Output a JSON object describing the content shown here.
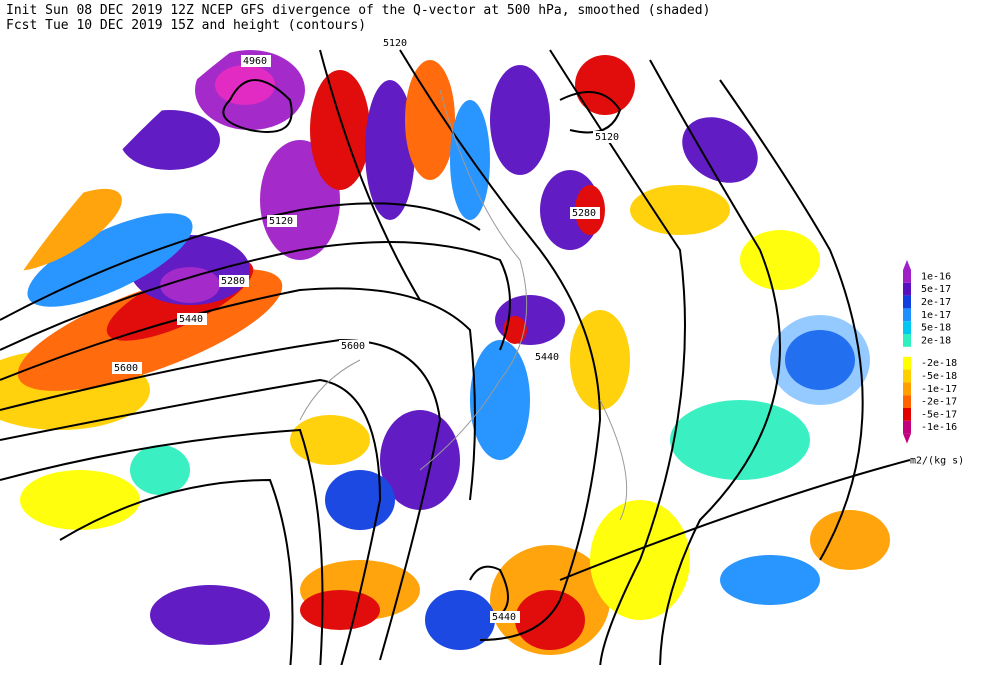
{
  "header": {
    "line1": "Init  Sun 08 DEC 2019 12Z  NCEP GFS divergence of the Q-vector at 500 hPa, smoothed (shaded)",
    "line2": "Fcst Tue 10 DEC 2019 15Z  and height (contours)"
  },
  "contour_labels": [
    "4960",
    "5120",
    "5120",
    "5120",
    "5280",
    "5280",
    "5440",
    "5440",
    "5440",
    "5600",
    "5600"
  ],
  "legend": {
    "labels": [
      "1e-16",
      "5e-17",
      "2e-17",
      "1e-17",
      "5e-18",
      "2e-18",
      "-2e-18",
      "-5e-18",
      "-1e-17",
      "-2e-17",
      "-5e-17",
      "-1e-16"
    ],
    "colors": [
      "#a020c8",
      "#5a10c0",
      "#1040e0",
      "#1e90ff",
      "#00c8f0",
      "#30f0c0",
      "#ffff00",
      "#ffd000",
      "#ffa000",
      "#ff6400",
      "#e00000",
      "#c0007c"
    ],
    "unit": "m2/(kg s)"
  }
}
